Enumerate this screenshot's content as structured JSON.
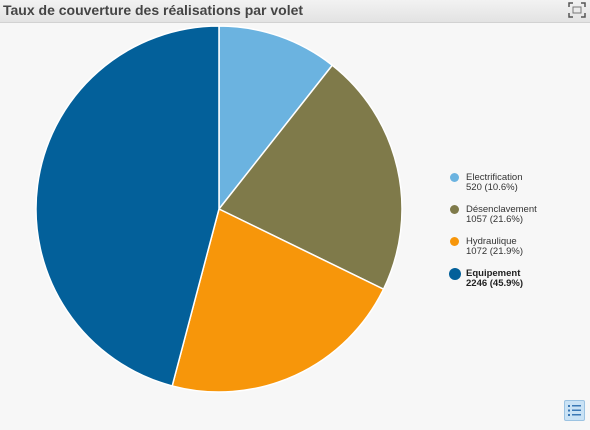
{
  "title": "Taux de couverture des réalisations par volet",
  "icons": {
    "expand": "expand-icon",
    "list": "list-icon"
  },
  "chart_data": {
    "type": "pie",
    "title": "",
    "slices": [
      {
        "name": "Electrification",
        "value": 520,
        "percent": "10.6%",
        "color": "#6bb3e0",
        "label_line": "520 (10.6%)"
      },
      {
        "name": "Désenclavement",
        "value": 1057,
        "percent": "21.6%",
        "color": "#7f7a4a",
        "label_line": "1057 (21.6%)"
      },
      {
        "name": "Hydraulique",
        "value": 1072,
        "percent": "21.9%",
        "color": "#f7960a",
        "label_line": "1072 (21.9%)"
      },
      {
        "name": "Equipement",
        "value": 2246,
        "percent": "45.9%",
        "color": "#03609a",
        "label_line": "2246 (45.9%)",
        "highlighted": true
      }
    ],
    "legend_position": "right"
  }
}
